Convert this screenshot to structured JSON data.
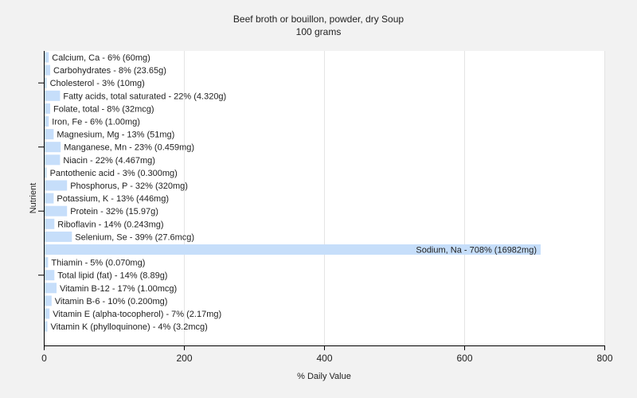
{
  "chart_data": {
    "type": "bar",
    "orientation": "horizontal",
    "title": "Beef broth or bouillon, powder, dry Soup",
    "subtitle": "100 grams",
    "xlabel": "% Daily Value",
    "ylabel": "Nutrient",
    "xlim": [
      0,
      800
    ],
    "xticks": [
      0,
      200,
      400,
      600,
      800
    ],
    "grid": true,
    "bar_color": "#c6defa",
    "bars": [
      {
        "label": "Calcium, Ca - 6% (60mg)",
        "value": 6
      },
      {
        "label": "Carbohydrates - 8% (23.65g)",
        "value": 8
      },
      {
        "label": "Cholesterol - 3% (10mg)",
        "value": 3
      },
      {
        "label": "Fatty acids, total saturated - 22% (4.320g)",
        "value": 22
      },
      {
        "label": "Folate, total - 8% (32mcg)",
        "value": 8
      },
      {
        "label": "Iron, Fe - 6% (1.00mg)",
        "value": 6
      },
      {
        "label": "Magnesium, Mg - 13% (51mg)",
        "value": 13
      },
      {
        "label": "Manganese, Mn - 23% (0.459mg)",
        "value": 23
      },
      {
        "label": "Niacin - 22% (4.467mg)",
        "value": 22
      },
      {
        "label": "Pantothenic acid - 3% (0.300mg)",
        "value": 3
      },
      {
        "label": "Phosphorus, P - 32% (320mg)",
        "value": 32
      },
      {
        "label": "Potassium, K - 13% (446mg)",
        "value": 13
      },
      {
        "label": "Protein - 32% (15.97g)",
        "value": 32
      },
      {
        "label": "Riboflavin - 14% (0.243mg)",
        "value": 14
      },
      {
        "label": "Selenium, Se - 39% (27.6mcg)",
        "value": 39
      },
      {
        "label": "Sodium, Na - 708% (16982mg)",
        "value": 708
      },
      {
        "label": "Thiamin - 5% (0.070mg)",
        "value": 5
      },
      {
        "label": "Total lipid (fat) - 14% (8.89g)",
        "value": 14
      },
      {
        "label": "Vitamin B-12 - 17% (1.00mcg)",
        "value": 17
      },
      {
        "label": "Vitamin B-6 - 10% (0.200mg)",
        "value": 10
      },
      {
        "label": "Vitamin E (alpha-tocopherol) - 7% (2.17mg)",
        "value": 7
      },
      {
        "label": "Vitamin K (phylloquinone) - 4% (3.2mcg)",
        "value": 4
      }
    ]
  }
}
